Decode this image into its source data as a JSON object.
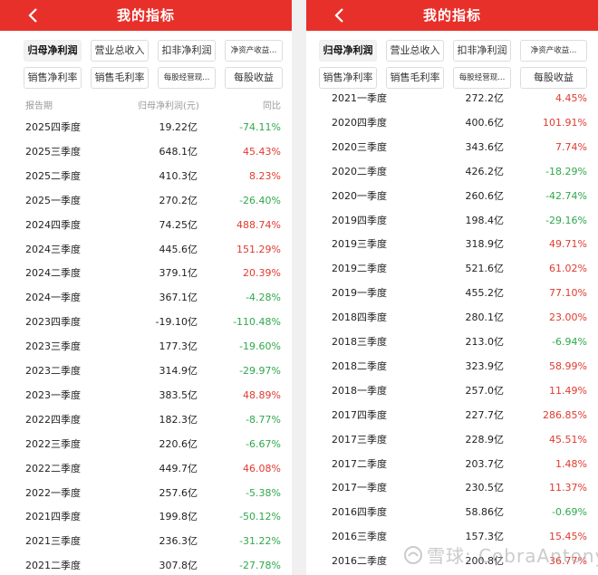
{
  "header": {
    "title": "我的指标"
  },
  "chips": {
    "row1": [
      "归母净利润",
      "营业总收入",
      "扣非净利润",
      "净资产收益..."
    ],
    "row2": [
      "销售净利率",
      "销售毛利率",
      "每股经营现...",
      "每股收益"
    ]
  },
  "table_head": {
    "period": "报告期",
    "value": "归母净利润(元)",
    "yoy": "同比"
  },
  "left_rows": [
    {
      "p": "2025四季度",
      "v": "19.22亿",
      "y": "-74.11%",
      "s": "neg"
    },
    {
      "p": "2025三季度",
      "v": "648.1亿",
      "y": "45.43%",
      "s": "pos"
    },
    {
      "p": "2025二季度",
      "v": "410.3亿",
      "y": "8.23%",
      "s": "pos"
    },
    {
      "p": "2025一季度",
      "v": "270.2亿",
      "y": "-26.40%",
      "s": "neg"
    },
    {
      "p": "2024四季度",
      "v": "74.25亿",
      "y": "488.74%",
      "s": "pos"
    },
    {
      "p": "2024三季度",
      "v": "445.6亿",
      "y": "151.29%",
      "s": "pos"
    },
    {
      "p": "2024二季度",
      "v": "379.1亿",
      "y": "20.39%",
      "s": "pos"
    },
    {
      "p": "2024一季度",
      "v": "367.1亿",
      "y": "-4.28%",
      "s": "neg"
    },
    {
      "p": "2023四季度",
      "v": "-19.10亿",
      "y": "-110.48%",
      "s": "neg"
    },
    {
      "p": "2023三季度",
      "v": "177.3亿",
      "y": "-19.60%",
      "s": "neg"
    },
    {
      "p": "2023二季度",
      "v": "314.9亿",
      "y": "-29.97%",
      "s": "neg"
    },
    {
      "p": "2023一季度",
      "v": "383.5亿",
      "y": "48.89%",
      "s": "pos"
    },
    {
      "p": "2022四季度",
      "v": "182.3亿",
      "y": "-8.77%",
      "s": "neg"
    },
    {
      "p": "2022三季度",
      "v": "220.6亿",
      "y": "-6.67%",
      "s": "neg"
    },
    {
      "p": "2022二季度",
      "v": "449.7亿",
      "y": "46.08%",
      "s": "pos"
    },
    {
      "p": "2022一季度",
      "v": "257.6亿",
      "y": "-5.38%",
      "s": "neg"
    },
    {
      "p": "2021四季度",
      "v": "199.8亿",
      "y": "-50.12%",
      "s": "neg"
    },
    {
      "p": "2021三季度",
      "v": "236.3亿",
      "y": "-31.22%",
      "s": "neg"
    },
    {
      "p": "2021二季度",
      "v": "307.8亿",
      "y": "-27.78%",
      "s": "neg"
    }
  ],
  "right_rows": [
    {
      "p": "2021一季度",
      "v": "272.2亿",
      "y": "4.45%",
      "s": "pos"
    },
    {
      "p": "2020四季度",
      "v": "400.6亿",
      "y": "101.91%",
      "s": "pos"
    },
    {
      "p": "2020三季度",
      "v": "343.6亿",
      "y": "7.74%",
      "s": "pos"
    },
    {
      "p": "2020二季度",
      "v": "426.2亿",
      "y": "-18.29%",
      "s": "neg"
    },
    {
      "p": "2020一季度",
      "v": "260.6亿",
      "y": "-42.74%",
      "s": "neg"
    },
    {
      "p": "2019四季度",
      "v": "198.4亿",
      "y": "-29.16%",
      "s": "neg"
    },
    {
      "p": "2019三季度",
      "v": "318.9亿",
      "y": "49.71%",
      "s": "pos"
    },
    {
      "p": "2019二季度",
      "v": "521.6亿",
      "y": "61.02%",
      "s": "pos"
    },
    {
      "p": "2019一季度",
      "v": "455.2亿",
      "y": "77.10%",
      "s": "pos"
    },
    {
      "p": "2018四季度",
      "v": "280.1亿",
      "y": "23.00%",
      "s": "pos"
    },
    {
      "p": "2018三季度",
      "v": "213.0亿",
      "y": "-6.94%",
      "s": "neg"
    },
    {
      "p": "2018二季度",
      "v": "323.9亿",
      "y": "58.99%",
      "s": "pos"
    },
    {
      "p": "2018一季度",
      "v": "257.0亿",
      "y": "11.49%",
      "s": "pos"
    },
    {
      "p": "2017四季度",
      "v": "227.7亿",
      "y": "286.85%",
      "s": "pos"
    },
    {
      "p": "2017三季度",
      "v": "228.9亿",
      "y": "45.51%",
      "s": "pos"
    },
    {
      "p": "2017二季度",
      "v": "203.7亿",
      "y": "1.48%",
      "s": "pos"
    },
    {
      "p": "2017一季度",
      "v": "230.5亿",
      "y": "11.37%",
      "s": "pos"
    },
    {
      "p": "2016四季度",
      "v": "58.86亿",
      "y": "-0.69%",
      "s": "neg"
    },
    {
      "p": "2016三季度",
      "v": "157.3亿",
      "y": "15.45%",
      "s": "pos"
    },
    {
      "p": "2016二季度",
      "v": "200.8亿",
      "y": "36.77%",
      "s": "pos"
    }
  ],
  "watermark": {
    "text": "雪球: CobraAntony"
  },
  "colors": {
    "header": "#e8302a",
    "positive": "#e03a2f",
    "negative": "#2fa84b"
  }
}
